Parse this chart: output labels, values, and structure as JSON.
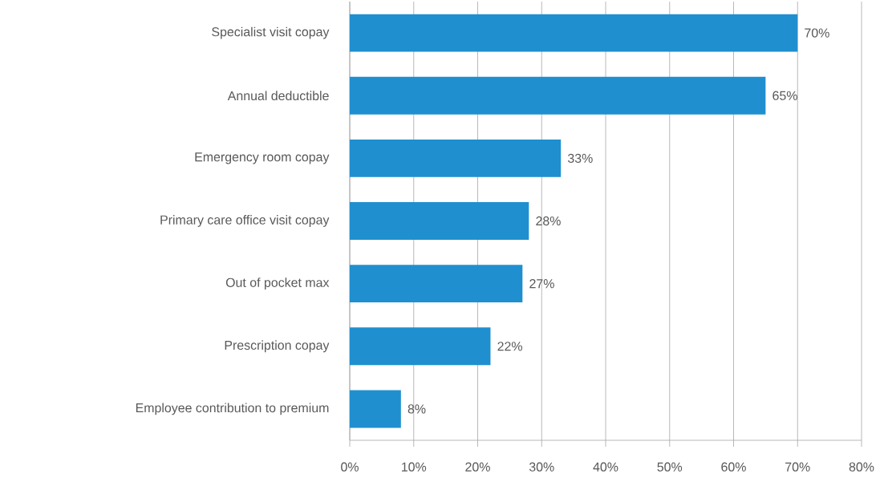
{
  "chart_data": {
    "type": "bar",
    "orientation": "horizontal",
    "categories": [
      "Specialist visit copay",
      "Annual deductible",
      "Emergency room copay",
      "Primary care office visit copay",
      "Out of pocket max",
      "Prescription copay",
      "Employee contribution to premium"
    ],
    "values": [
      70,
      65,
      33,
      28,
      27,
      22,
      8
    ],
    "value_labels": [
      "70%",
      "65%",
      "33%",
      "28%",
      "27%",
      "22%",
      "8%"
    ],
    "color": "#1f8fcf",
    "xlim": [
      0,
      80
    ],
    "xticks": [
      {
        "value": 0,
        "label": "0%"
      },
      {
        "value": 10,
        "label": "10%"
      },
      {
        "value": 20,
        "label": "20%"
      },
      {
        "value": 30,
        "label": "30%"
      },
      {
        "value": 40,
        "label": "40%"
      },
      {
        "value": 50,
        "label": "50%"
      },
      {
        "value": 60,
        "label": "60%"
      },
      {
        "value": 70,
        "label": "70%"
      },
      {
        "value": 80,
        "label": "80%"
      }
    ],
    "grid": "x"
  }
}
